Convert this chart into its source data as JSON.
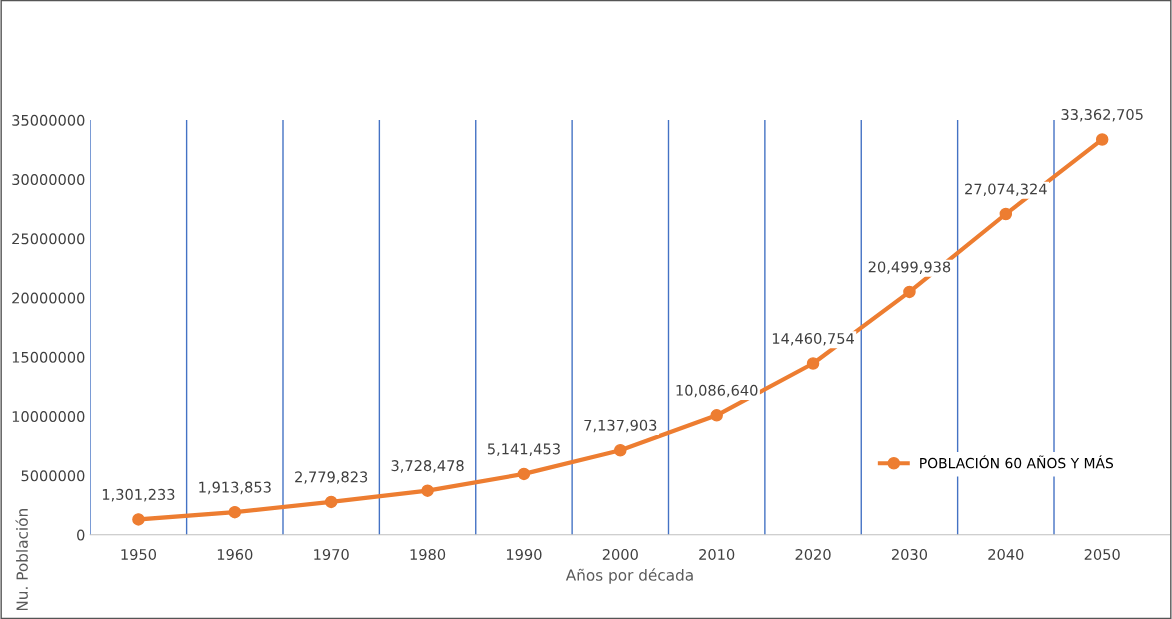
{
  "chart_data": {
    "type": "line",
    "xlabel": "Años por década",
    "ylabel": "Nu. Población",
    "categories": [
      "1950",
      "1960",
      "1970",
      "1980",
      "1990",
      "2000",
      "2010",
      "2020",
      "2030",
      "2040",
      "2050"
    ],
    "series": [
      {
        "name": "POBLACIÓN 60 AÑOS Y MÁS",
        "color": "#ed7d31",
        "values": [
          1301233,
          1913853,
          2779823,
          3728478,
          5141453,
          7137903,
          10086640,
          14460754,
          20499938,
          27074324,
          33362705
        ],
        "value_labels": [
          "1,301,233",
          "1,913,853",
          "2,779,823",
          "3,728,478",
          "5,141,453",
          "7,137,903",
          "10,086,640",
          "14,460,754",
          "20,499,938",
          "27,074,324",
          "33,362,705"
        ]
      }
    ],
    "ylim": [
      0,
      35000000
    ],
    "yticks": [
      0,
      5000000,
      10000000,
      15000000,
      20000000,
      25000000,
      30000000,
      35000000
    ],
    "grid": "x",
    "legend": "right",
    "marker": "circle",
    "line_style": "solid"
  }
}
